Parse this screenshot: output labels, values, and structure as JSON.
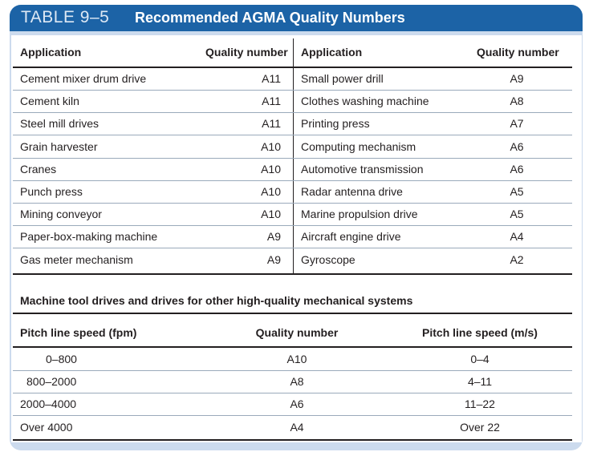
{
  "title": {
    "number": "TABLE 9–5",
    "text": "Recommended AGMA Quality Numbers"
  },
  "table1": {
    "headers": [
      "Application",
      "Quality number",
      "Application",
      "Quality number"
    ],
    "rows": [
      [
        "Cement mixer drum drive",
        "A11",
        "Small power drill",
        "A9"
      ],
      [
        "Cement kiln",
        "A11",
        "Clothes washing machine",
        "A8"
      ],
      [
        "Steel mill drives",
        "A11",
        "Printing press",
        "A7"
      ],
      [
        "Grain harvester",
        "A10",
        "Computing mechanism",
        "A6"
      ],
      [
        "Cranes",
        "A10",
        "Automotive transmission",
        "A6"
      ],
      [
        "Punch press",
        "A10",
        "Radar antenna drive",
        "A5"
      ],
      [
        "Mining conveyor",
        "A10",
        "Marine propulsion drive",
        "A5"
      ],
      [
        "Paper-box-making machine",
        "A9",
        "Aircraft engine drive",
        "A4"
      ],
      [
        "Gas meter mechanism",
        "A9",
        "Gyroscope",
        "A2"
      ]
    ]
  },
  "table2": {
    "caption": "Machine tool drives and drives for other high-quality mechanical systems",
    "headers": [
      "Pitch line speed (fpm)",
      "Quality number",
      "Pitch line speed (m/s)"
    ],
    "rows": [
      [
        "0–800",
        "A10",
        "0–4"
      ],
      [
        "800–2000",
        "A8",
        "4–11"
      ],
      [
        "2000–4000",
        "A6",
        "11–22"
      ],
      [
        "Over 4000",
        "A4",
        "Over 22"
      ]
    ]
  }
}
